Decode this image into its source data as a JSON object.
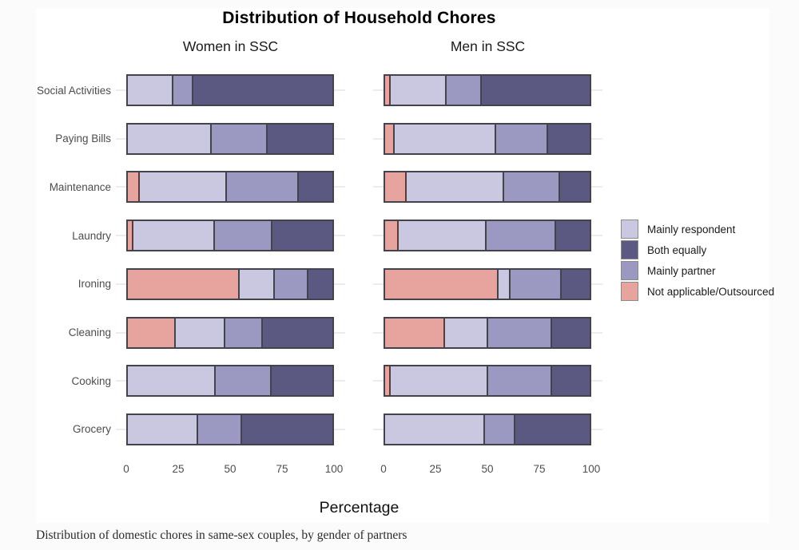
{
  "page": {
    "title": "Distribution of Household Chores",
    "x_axis_label": "Percentage",
    "caption": "Distribution of domestic chores in same-sex couples, by gender of partners"
  },
  "chart_data": {
    "type": "bar",
    "orientation": "horizontal",
    "stacked": true,
    "units": "percent",
    "x_range": [
      0,
      100
    ],
    "x_ticks": [
      0,
      25,
      50,
      75,
      100
    ],
    "grid": "row-stub-lines",
    "categories_top_to_bottom": [
      "Social Activities",
      "Paying Bills",
      "Maintenance",
      "Laundry",
      "Ironing",
      "Cleaning",
      "Cooking",
      "Grocery"
    ],
    "legend": {
      "position": "right",
      "entries": [
        {
          "label": "Mainly respondent",
          "color": "#cac7e0"
        },
        {
          "label": "Both equally",
          "color": "#5b5981"
        },
        {
          "label": "Mainly partner",
          "color": "#9b98c2"
        },
        {
          "label": "Not applicable/Outsourced",
          "color": "#e7a49f"
        }
      ]
    },
    "stack_order_left_to_right": [
      "Not applicable/Outsourced",
      "Mainly respondent",
      "Mainly partner",
      "Both equally"
    ],
    "facets": [
      {
        "label": "Women in SSC",
        "rows": [
          [
            0,
            22,
            9,
            69
          ],
          [
            0,
            41,
            27,
            32
          ],
          [
            5,
            43,
            35,
            17
          ],
          [
            2,
            40,
            28,
            30
          ],
          [
            55,
            17,
            16,
            12
          ],
          [
            23,
            24,
            18,
            35
          ],
          [
            0,
            43,
            27,
            30
          ],
          [
            0,
            34,
            21,
            45
          ]
        ]
      },
      {
        "label": "Men in SSC",
        "rows": [
          [
            2,
            27,
            17,
            54
          ],
          [
            4,
            50,
            25,
            21
          ],
          [
            10,
            48,
            27,
            15
          ],
          [
            6,
            43,
            34,
            17
          ],
          [
            56,
            5,
            25,
            14
          ],
          [
            29,
            21,
            31,
            19
          ],
          [
            2,
            48,
            31,
            19
          ],
          [
            0,
            49,
            14,
            37
          ]
        ]
      }
    ],
    "colors": {
      "bar_border": "#43434e",
      "gridline": "#ececec",
      "axis_text": "#4d4d4d",
      "page_background": "#fbfbfb",
      "panel_background": "#ffffff"
    }
  }
}
